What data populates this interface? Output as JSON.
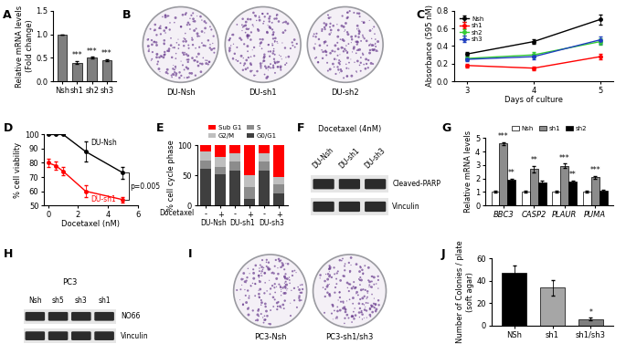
{
  "chart_data": [
    {
      "panel": "A",
      "type": "bar",
      "categories": [
        "Nsh",
        "sh1",
        "sh2",
        "sh3"
      ],
      "values": [
        1.0,
        0.4,
        0.5,
        0.45
      ],
      "errors": [
        0,
        0.03,
        0.02,
        0.02
      ],
      "significance": [
        null,
        "***",
        "***",
        "***"
      ],
      "color": "#7f7f7f",
      "y_label": "Relative mRNA levels\n(Fold change)",
      "ylim": [
        0,
        1.5
      ],
      "yticks": [
        {
          "value": 0,
          "label": "0.0"
        },
        {
          "value": 0.5,
          "label": "0.5"
        },
        {
          "value": 1.0,
          "label": "1.0"
        },
        {
          "value": 1.5,
          "label": "1.5"
        }
      ]
    },
    {
      "panel": "C",
      "type": "line",
      "x": [
        3,
        4,
        5
      ],
      "x_label": "Days of culture",
      "y_label": "Absorbance (595 nM)",
      "xlim": [
        2.8,
        5.2
      ],
      "xticks": [
        3,
        4,
        5
      ],
      "ylim": [
        0,
        0.8
      ],
      "yticks": [
        {
          "value": 0,
          "label": "0.0"
        },
        {
          "value": 0.2,
          "label": "0.2"
        },
        {
          "value": 0.4,
          "label": "0.4"
        },
        {
          "value": 0.6,
          "label": "0.6"
        },
        {
          "value": 0.8,
          "label": "0.8"
        }
      ],
      "legend": "upper left",
      "marker": "o",
      "series": [
        {
          "name": "Nsh",
          "color": "#000000",
          "values": [
            0.31,
            0.45,
            0.7
          ],
          "errors": [
            0.02,
            0.03,
            0.06
          ]
        },
        {
          "name": "sh1",
          "color": "#ff0000",
          "values": [
            0.18,
            0.15,
            0.28
          ],
          "errors": [
            0.02,
            0.02,
            0.03
          ]
        },
        {
          "name": "sh2",
          "color": "#33cc33",
          "values": [
            0.26,
            0.3,
            0.45
          ],
          "errors": [
            0.02,
            0.03,
            0.04
          ]
        },
        {
          "name": "sh3",
          "color": "#1f3fbf",
          "values": [
            0.25,
            0.28,
            0.47
          ],
          "errors": [
            0.02,
            0.03,
            0.04
          ]
        }
      ]
    },
    {
      "panel": "D",
      "type": "line",
      "x": [
        0,
        0.5,
        1,
        2.5,
        5
      ],
      "x_label": "Docetaxel (nM)",
      "y_label": "% cell viability",
      "xlim": [
        -0.3,
        6
      ],
      "xticks": [
        0,
        2,
        4,
        6
      ],
      "ylim": [
        50,
        100
      ],
      "yticks": [
        50,
        60,
        70,
        80,
        90,
        100
      ],
      "marker": "o",
      "annotations": [
        "p=0.005"
      ],
      "series": [
        {
          "name": "DU-Nsh",
          "color": "#000000",
          "values": [
            100,
            100,
            100,
            88,
            73
          ],
          "errors": [
            0,
            0,
            0,
            7,
            4
          ]
        },
        {
          "name": "DU-sh1",
          "color": "#ff0000",
          "values": [
            80,
            78,
            74,
            60,
            54
          ],
          "errors": [
            3,
            3,
            3,
            4,
            2
          ]
        }
      ]
    },
    {
      "panel": "E",
      "type": "bar",
      "stacked": true,
      "categories": [
        "-",
        "+",
        "-",
        "+",
        "-",
        "+"
      ],
      "groups": [
        "DU-Nsh",
        "DU-sh1",
        "DU-sh3"
      ],
      "x_label": "Docetaxel",
      "y_label": "% cell cycle phase",
      "ylim": [
        0,
        100
      ],
      "yticks": [
        0,
        50,
        100
      ],
      "legend": "top",
      "series": [
        {
          "name": "G0/G1",
          "color": "#3f3f3f",
          "values": [
            60,
            52,
            58,
            10,
            58,
            20
          ]
        },
        {
          "name": "S",
          "color": "#8c8c8c",
          "values": [
            15,
            12,
            15,
            20,
            15,
            15
          ]
        },
        {
          "name": "G2/M",
          "color": "#bfbfbf",
          "values": [
            15,
            16,
            14,
            20,
            14,
            12
          ]
        },
        {
          "name": "Sub G1",
          "color": "#ff0000",
          "values": [
            10,
            20,
            13,
            50,
            13,
            53
          ]
        }
      ]
    },
    {
      "panel": "G",
      "type": "bar",
      "categories": [
        "BBC3",
        "CASP2",
        "PLAUR",
        "PUMA"
      ],
      "y_label": "Relative mRNA levels",
      "ylim": [
        0,
        5
      ],
      "yticks": [
        0,
        1,
        2,
        3,
        4,
        5
      ],
      "legend": "top",
      "series": [
        {
          "name": "Nsh",
          "color": "#ffffff",
          "values": [
            1,
            1,
            1,
            1
          ],
          "errors": [
            0.08,
            0.08,
            0.08,
            0.08
          ]
        },
        {
          "name": "sh1",
          "color": "#8c8c8c",
          "values": [
            4.6,
            2.7,
            2.95,
            2.1
          ],
          "errors": [
            0.1,
            0.25,
            0.15,
            0.1
          ],
          "significance": [
            "***",
            "**",
            "***",
            "***"
          ]
        },
        {
          "name": "sh2",
          "color": "#000000",
          "values": [
            1.9,
            1.7,
            1.75,
            1.1
          ],
          "errors": [
            0.1,
            0.15,
            0.1,
            0.05
          ],
          "significance": [
            "**",
            null,
            "**",
            null
          ]
        }
      ]
    },
    {
      "panel": "J",
      "type": "bar",
      "categories": [
        "NSh",
        "sh1",
        "sh1/sh3"
      ],
      "values": [
        47,
        34,
        6
      ],
      "errors": [
        7,
        7,
        1
      ],
      "colors": [
        "#000000",
        "#a6a6a6",
        "#7f7f7f"
      ],
      "significance": [
        null,
        null,
        "*"
      ],
      "y_label": "Number of Colonies / plate\n(soft agar)",
      "ylim": [
        0,
        60
      ],
      "yticks": [
        0,
        20,
        40,
        60
      ]
    }
  ],
  "images": [
    {
      "panel": "B",
      "type": "colony_plates",
      "plates": [
        "DU-Nsh",
        "DU-sh1",
        "DU-sh2"
      ]
    },
    {
      "panel": "F",
      "type": "western_blot",
      "title": "Docetaxel (4nM)",
      "lanes": [
        "DU-Nsh",
        "DU-sh1",
        "DU-sh3"
      ],
      "bands": [
        "Cleaved-PARP",
        "Vinculin"
      ]
    },
    {
      "panel": "H",
      "type": "western_blot",
      "title": "PC3",
      "lanes": [
        "Nsh",
        "sh5",
        "sh3",
        "sh1"
      ],
      "bands": [
        "NO66",
        "Vinculin"
      ]
    },
    {
      "panel": "I",
      "type": "colony_plates",
      "plates": [
        "PC3-Nsh",
        "PC3-sh1/sh3"
      ]
    }
  ]
}
